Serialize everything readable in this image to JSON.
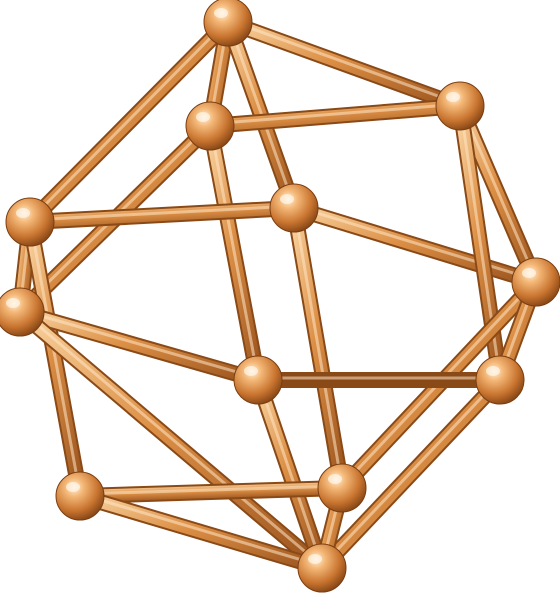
{
  "image": {
    "subject": "copper-molecular-cage-model",
    "background_color": "#ffffff",
    "colors": {
      "copper_light": "#f6c48a",
      "copper_mid": "#d88a3e",
      "copper_dark": "#8a4a17",
      "copper_highlight": "#fff1dc"
    }
  }
}
